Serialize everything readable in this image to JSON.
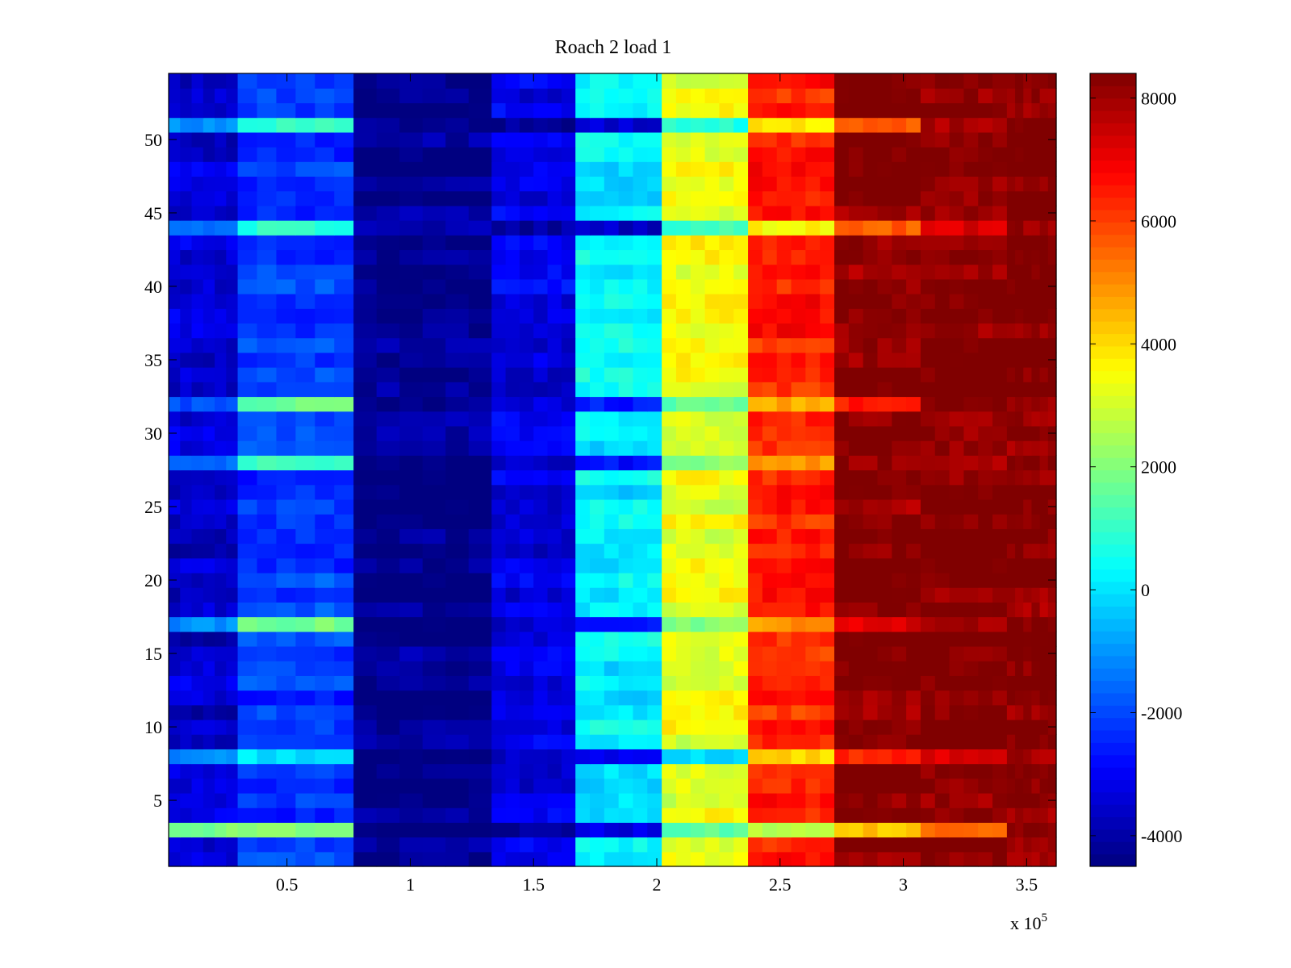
{
  "chart_data": {
    "type": "heatmap",
    "title": "Roach 2 load 1",
    "xlabel": "",
    "ylabel": "",
    "x_exponent_label": "x 10",
    "x_exponent_power": "5",
    "xlim": [
      0.02,
      3.62
    ],
    "ylim": [
      0.5,
      54.5
    ],
    "x_ticks": [
      {
        "value": 0.5,
        "label": "0.5"
      },
      {
        "value": 1,
        "label": "1"
      },
      {
        "value": 1.5,
        "label": "1.5"
      },
      {
        "value": 2,
        "label": "2"
      },
      {
        "value": 2.5,
        "label": "2.5"
      },
      {
        "value": 3,
        "label": "3"
      },
      {
        "value": 3.5,
        "label": "3.5"
      }
    ],
    "y_ticks": [
      {
        "value": 5,
        "label": "5"
      },
      {
        "value": 10,
        "label": "10"
      },
      {
        "value": 15,
        "label": "15"
      },
      {
        "value": 20,
        "label": "20"
      },
      {
        "value": 25,
        "label": "25"
      },
      {
        "value": 30,
        "label": "30"
      },
      {
        "value": 35,
        "label": "35"
      },
      {
        "value": 40,
        "label": "40"
      },
      {
        "value": 45,
        "label": "45"
      },
      {
        "value": 50,
        "label": "50"
      }
    ],
    "colorbar": {
      "colormap": "jet",
      "range": [
        -4500,
        8400
      ],
      "ticks": [
        {
          "value": -4000,
          "label": "-4000"
        },
        {
          "value": -2000,
          "label": "-2000"
        },
        {
          "value": 0,
          "label": "0"
        },
        {
          "value": 2000,
          "label": "2000"
        },
        {
          "value": 4000,
          "label": "4000"
        },
        {
          "value": 6000,
          "label": "6000"
        },
        {
          "value": 8000,
          "label": "8000"
        }
      ]
    },
    "rows": 54,
    "band_edges": [
      0.02,
      0.3,
      0.77,
      1.33,
      1.67,
      2.02,
      2.37,
      2.72,
      3.07,
      3.42,
      3.62
    ],
    "band_base_values": [
      -3500,
      -2200,
      -4350,
      -3200,
      200,
      3300,
      6400,
      8300,
      8350,
      8350
    ],
    "highlight_rows": {
      "3": [
        2000,
        1800,
        -4350,
        -3800,
        -3000,
        1000,
        2800,
        4200,
        5500,
        8300
      ],
      "8": [
        -1000,
        500,
        -4350,
        -3900,
        -3400,
        300,
        3800,
        6200,
        7400,
        8300
      ],
      "17": [
        -1500,
        1500,
        -4350,
        -3400,
        -2500,
        1800,
        4800,
        7400,
        8300,
        8350
      ],
      "28": [
        -1800,
        1000,
        -4350,
        -3400,
        -2500,
        2000,
        5200,
        7800,
        8300,
        8350
      ],
      "32": [
        -2000,
        1200,
        -4350,
        -3600,
        -2800,
        1200,
        4200,
        6400,
        8100,
        8350
      ],
      "44": [
        -1200,
        1200,
        -4350,
        -3800,
        -3200,
        800,
        3800,
        5800,
        7000,
        8300
      ],
      "51": [
        -600,
        1000,
        -4350,
        -3900,
        -3400,
        400,
        3600,
        6000,
        8200,
        8350
      ]
    }
  }
}
